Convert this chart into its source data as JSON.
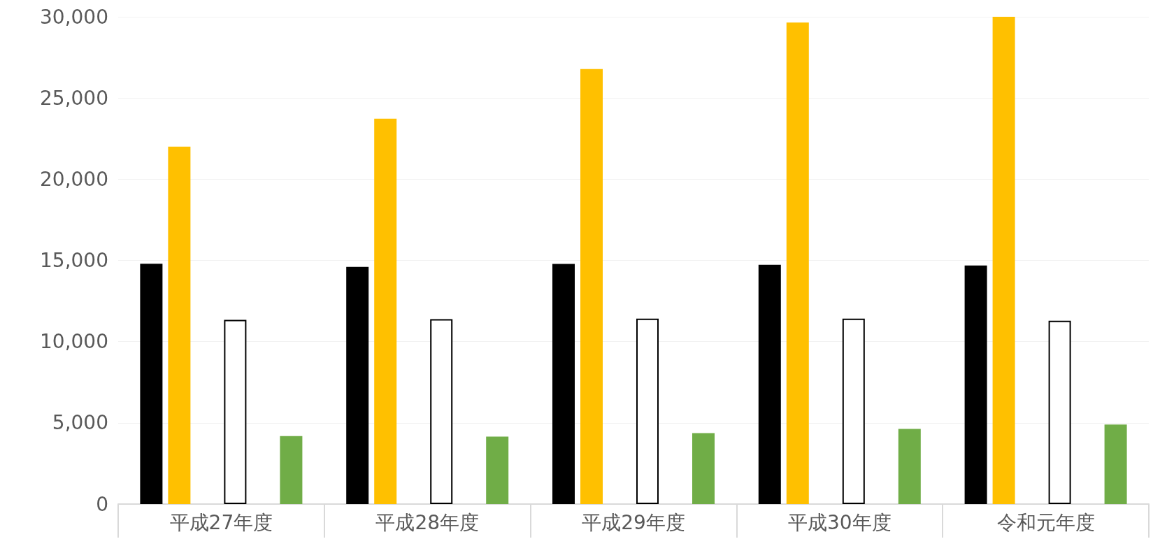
{
  "chart_data": {
    "type": "bar",
    "categories": [
      "平成27年度",
      "平成28年度",
      "平成29年度",
      "平成30年度",
      "令和元年度"
    ],
    "series": [
      {
        "color": "#000000",
        "values": [
          14800,
          14600,
          14780,
          14730,
          14690
        ]
      },
      {
        "color": "#ffc000",
        "values": [
          22000,
          23730,
          26780,
          29640,
          30000
        ]
      },
      {
        "values": [
          null,
          null,
          null,
          null,
          null
        ]
      },
      {
        "color": "#ffffff",
        "values": [
          11340,
          11380,
          11420,
          11420,
          11290
        ]
      },
      {
        "values": [
          null,
          null,
          null,
          null,
          null
        ]
      },
      {
        "color": "#70ad47",
        "values": [
          4190,
          4150,
          4370,
          4630,
          4900
        ]
      }
    ],
    "ylim": [
      0,
      30000
    ],
    "yticks": [
      0,
      {
        "value": 5000,
        "label": "5,000"
      },
      {
        "value": 10000,
        "label": "10,000"
      },
      {
        "value": 15000,
        "label": "15,000"
      },
      {
        "value": 20000,
        "label": "20,000"
      },
      {
        "value": 25000,
        "label": "25,000"
      },
      {
        "value": 30000,
        "label": "30,000"
      }
    ],
    "grid": "y"
  }
}
